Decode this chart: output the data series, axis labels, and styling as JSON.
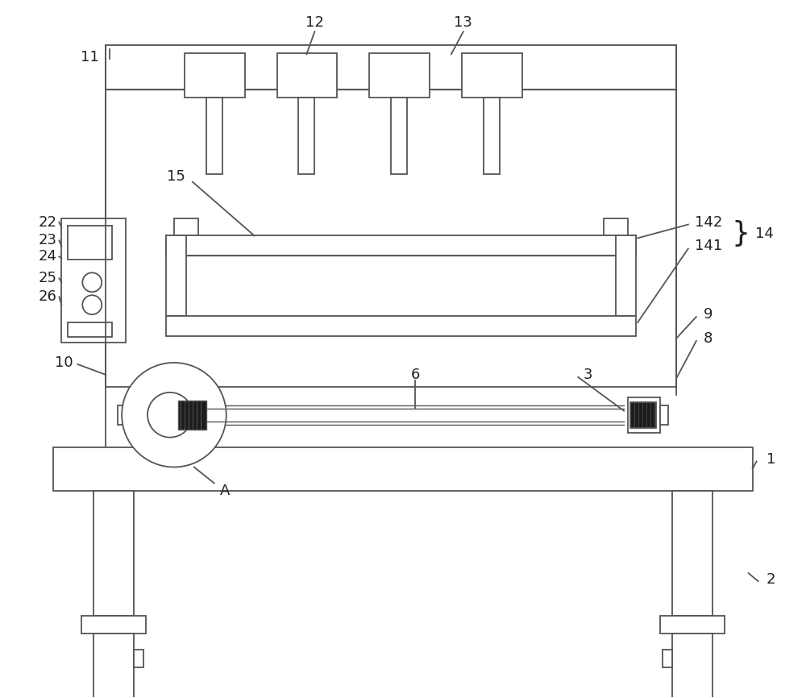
{
  "bg": "#ffffff",
  "lc": "#555555",
  "lw": 1.3,
  "lt": 1.0,
  "fs": 13
}
